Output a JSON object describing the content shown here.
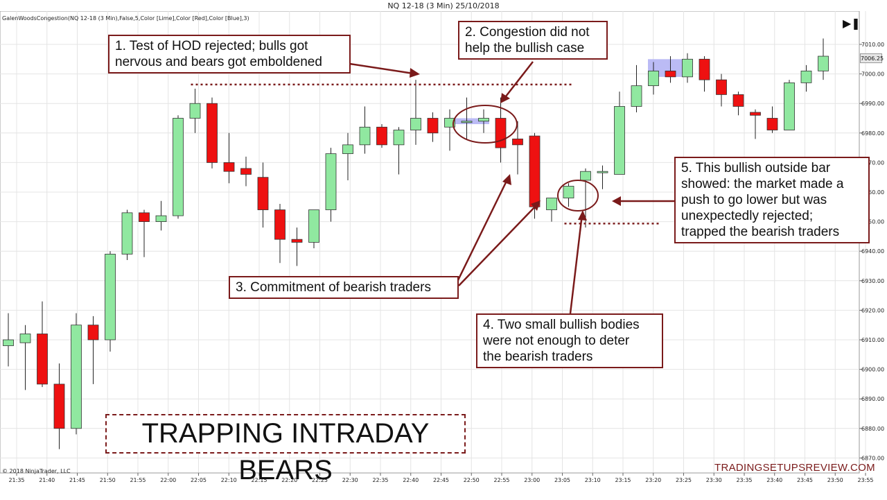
{
  "header": {
    "title": "NQ 12-18 (3 Min)  25/10/2018"
  },
  "indicator_label": "GalenWoodsCongestion(NQ 12-18 (3 Min),False,5,Color [Lime],Color [Red],Color [Blue],3)",
  "copyright": "© 2018 NinjaTrader, LLC",
  "watermark": "TRADINGSETUPSREVIEW.COM",
  "title_box": "TRAPPING INTRADAY BEARS",
  "price_marker": "7006.25",
  "scroll_icon": "skip-to-end-icon",
  "colors": {
    "bull": "#90e8a0",
    "bear": "#ee1111",
    "congestion": "#b4b4f4",
    "annotation": "#7a1a1a"
  },
  "callouts": {
    "c1": [
      "1. Test of HOD rejected; bulls got",
      "nervous and bears got emboldened"
    ],
    "c2": [
      "2. Congestion did not",
      "help the bullish case"
    ],
    "c3": [
      "3. Commitment of bearish traders"
    ],
    "c4": [
      "4. Two small bullish bodies",
      "were not enough to deter",
      "the bearish traders"
    ],
    "c5": [
      "5. This bullish outside bar",
      "showed: the market made a",
      "push to go lower but was",
      "unexpectedly rejected;",
      "trapped the bearish traders"
    ]
  },
  "chart_data": {
    "type": "candlestick",
    "title": "NQ 12-18 (3 Min)  25/10/2018",
    "y_ticks": [
      6870,
      6880,
      6890,
      6900,
      6910,
      6920,
      6930,
      6940,
      6950,
      6960,
      6970,
      6980,
      6990,
      7000,
      7010
    ],
    "y_tick_labels": [
      "6870.00",
      "6880.00",
      "6890.00",
      "6900.00",
      "6910.00",
      "6920.00",
      "6930.00",
      "6940.00",
      "6950.00",
      "6960.00",
      "6970.00",
      "6980.00",
      "6990.00",
      "7000.00",
      "7010.00"
    ],
    "ylim": [
      6865,
      7017
    ],
    "x_tick_labels": [
      "21:35",
      "21:40",
      "21:45",
      "21:50",
      "21:55",
      "22:00",
      "22:05",
      "22:10",
      "22:15",
      "22:20",
      "22:25",
      "22:30",
      "22:35",
      "22:40",
      "22:45",
      "22:50",
      "22:55",
      "23:00",
      "23:05",
      "23:10",
      "23:15",
      "23:20",
      "23:25",
      "23:30",
      "23:35",
      "23:40",
      "23:45",
      "23:50",
      "23:55"
    ],
    "bars": [
      {
        "o": 6908,
        "h": 6919,
        "l": 6901,
        "c": 6910
      },
      {
        "o": 6909,
        "h": 6915,
        "l": 6893,
        "c": 6912
      },
      {
        "o": 6912,
        "h": 6923,
        "l": 6894,
        "c": 6895
      },
      {
        "o": 6895,
        "h": 6902,
        "l": 6873,
        "c": 6880
      },
      {
        "o": 6880,
        "h": 6919,
        "l": 6878,
        "c": 6915
      },
      {
        "o": 6915,
        "h": 6918,
        "l": 6895,
        "c": 6910
      },
      {
        "o": 6910,
        "h": 6940,
        "l": 6906,
        "c": 6939
      },
      {
        "o": 6939,
        "h": 6954,
        "l": 6937,
        "c": 6953
      },
      {
        "o": 6953,
        "h": 6954,
        "l": 6938,
        "c": 6950
      },
      {
        "o": 6950,
        "h": 6957,
        "l": 6947,
        "c": 6952
      },
      {
        "o": 6952,
        "h": 6986,
        "l": 6951,
        "c": 6985
      },
      {
        "o": 6985,
        "h": 6995,
        "l": 6980,
        "c": 6990
      },
      {
        "o": 6990,
        "h": 6992,
        "l": 6968,
        "c": 6970
      },
      {
        "o": 6970,
        "h": 6980,
        "l": 6963,
        "c": 6967
      },
      {
        "o": 6968,
        "h": 6972,
        "l": 6962,
        "c": 6966
      },
      {
        "o": 6965,
        "h": 6970,
        "l": 6948,
        "c": 6954
      },
      {
        "o": 6954,
        "h": 6956,
        "l": 6936,
        "c": 6944
      },
      {
        "o": 6944,
        "h": 6948,
        "l": 6935,
        "c": 6943
      },
      {
        "o": 6943,
        "h": 6954,
        "l": 6941,
        "c": 6954
      },
      {
        "o": 6954,
        "h": 6975,
        "l": 6950,
        "c": 6973
      },
      {
        "o": 6973,
        "h": 6980,
        "l": 6964,
        "c": 6976
      },
      {
        "o": 6976,
        "h": 6989,
        "l": 6973,
        "c": 6982
      },
      {
        "o": 6982,
        "h": 6983,
        "l": 6975,
        "c": 6976
      },
      {
        "o": 6976,
        "h": 6982,
        "l": 6966,
        "c": 6981
      },
      {
        "o": 6981,
        "h": 6998,
        "l": 6976,
        "c": 6985
      },
      {
        "o": 6985,
        "h": 6987,
        "l": 6977,
        "c": 6980
      },
      {
        "o": 6982,
        "h": 6988,
        "l": 6974,
        "c": 6985
      },
      {
        "o": 6984,
        "h": 6992,
        "l": 6978,
        "c": 6984
      },
      {
        "o": 6984,
        "h": 6988,
        "l": 6980,
        "c": 6985
      },
      {
        "o": 6985,
        "h": 6992,
        "l": 6970,
        "c": 6975
      },
      {
        "o": 6978,
        "h": 6984,
        "l": 6966,
        "c": 6976
      },
      {
        "o": 6979,
        "h": 6980,
        "l": 6951,
        "c": 6955
      },
      {
        "o": 6954,
        "h": 6958,
        "l": 6950,
        "c": 6958
      },
      {
        "o": 6958,
        "h": 6963,
        "l": 6955,
        "c": 6962
      },
      {
        "o": 6964,
        "h": 6968,
        "l": 6948,
        "c": 6967
      },
      {
        "o": 6967,
        "h": 6969,
        "l": 6961,
        "c": 6967
      },
      {
        "o": 6966,
        "h": 6994,
        "l": 6966,
        "c": 6989
      },
      {
        "o": 6989,
        "h": 7003,
        "l": 6987,
        "c": 6996
      },
      {
        "o": 6996,
        "h": 7004,
        "l": 6993,
        "c": 7001
      },
      {
        "o": 7001,
        "h": 7006,
        "l": 6997,
        "c": 6999
      },
      {
        "o": 6999,
        "h": 7007,
        "l": 6997,
        "c": 7005
      },
      {
        "o": 7005,
        "h": 7006,
        "l": 6994,
        "c": 6998
      },
      {
        "o": 6998,
        "h": 7000,
        "l": 6989,
        "c": 6993
      },
      {
        "o": 6993,
        "h": 6994,
        "l": 6986,
        "c": 6989
      },
      {
        "o": 6987,
        "h": 6988,
        "l": 6978,
        "c": 6986
      },
      {
        "o": 6985,
        "h": 6989,
        "l": 6980,
        "c": 6981
      },
      {
        "o": 6981,
        "h": 6998,
        "l": 6981,
        "c": 6997
      },
      {
        "o": 6997,
        "h": 7003,
        "l": 6994,
        "c": 7001
      },
      {
        "o": 7001,
        "h": 7012,
        "l": 6998,
        "c": 7006
      }
    ],
    "hod_level": 6995,
    "congestion_zones": [
      {
        "from_bar": 26,
        "to_bar": 28,
        "low": 6983,
        "high": 6985
      },
      {
        "from_bar": 38,
        "to_bar": 40,
        "low": 6999,
        "high": 7005
      }
    ],
    "low_level": 6951
  }
}
